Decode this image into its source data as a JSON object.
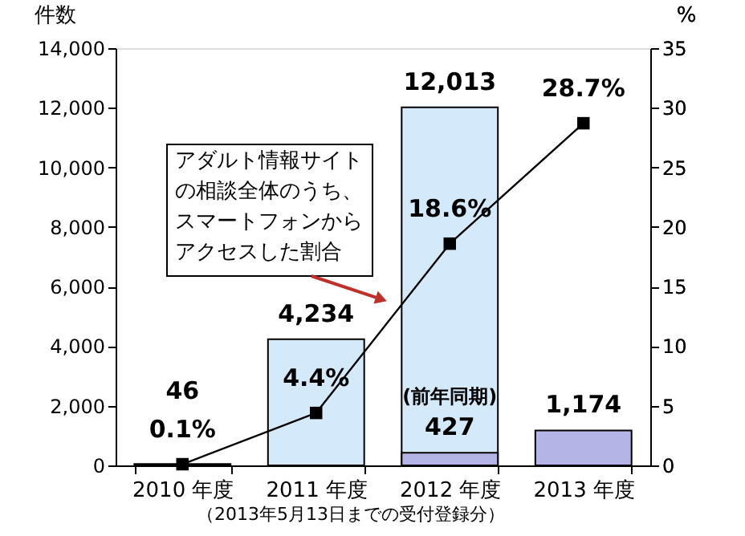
{
  "chart_data": {
    "type": "bar",
    "categories": [
      "2010 年度",
      "2011 年度",
      "2012 年度",
      "2013 年度"
    ],
    "ylabel": "件数",
    "y2label": "%",
    "ylim": [
      0,
      14000
    ],
    "yticks": [
      0,
      {
        "value": 2000,
        "label": "2,000"
      },
      {
        "value": 4000,
        "label": "4,000"
      },
      {
        "value": 6000,
        "label": "6,000"
      },
      {
        "value": 8000,
        "label": "8,000"
      },
      {
        "value": 10000,
        "label": "10,000"
      },
      {
        "value": 12000,
        "label": "12,000"
      },
      {
        "value": 14000,
        "label": "14,000"
      }
    ],
    "y2lim": [
      0,
      35
    ],
    "y2ticks": [
      0,
      5,
      10,
      15,
      20,
      25,
      30,
      35
    ],
    "series": [
      {
        "type": "bar",
        "color": "#d4e9fa",
        "values": [
          46,
          4234,
          12013,
          null
        ],
        "value_labels": [
          "46",
          "4,234",
          "12,013",
          null
        ]
      },
      {
        "type": "bar",
        "color": "#b4b4e6",
        "values": [
          null,
          null,
          427,
          1174
        ],
        "value_labels": [
          null,
          null,
          "427",
          "1,174"
        ]
      },
      {
        "type": "line",
        "axis": "y2",
        "color": "#000000",
        "line_style": "solid",
        "marker": "square",
        "values": [
          0.1,
          4.4,
          18.6,
          28.7
        ],
        "value_labels": [
          "0.1%",
          "4.4%",
          "18.6%",
          "28.7%"
        ]
      }
    ],
    "annotations": [
      "アダルト情報サイトの相談全体のうち、スマートフォンからアクセスした割合",
      {
        "text": "(前年同期)",
        "x": "2012 年度",
        "y": 427
      },
      "（2013年5月13日までの受付登録分）"
    ]
  }
}
